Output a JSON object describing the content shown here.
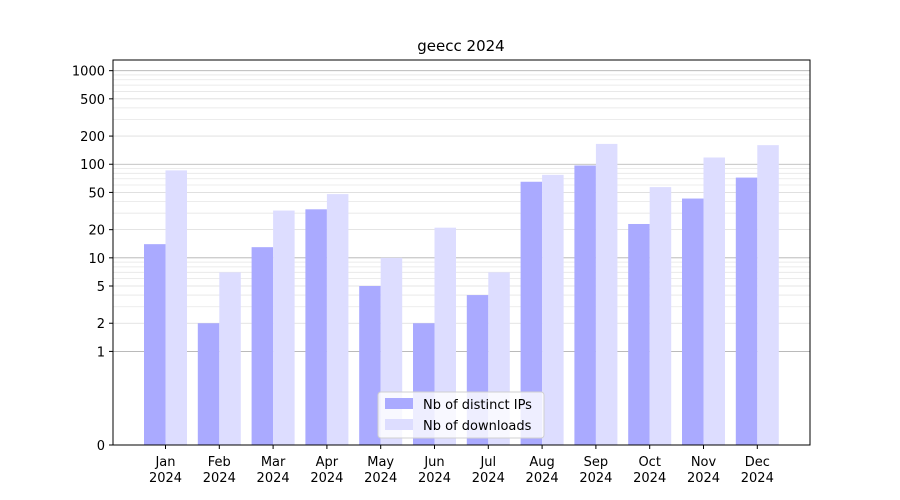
{
  "chart_data": {
    "type": "bar",
    "title": "geecc 2024",
    "xlabel": "",
    "ylabel": "",
    "y_scale": "symlog",
    "ylim": [
      0,
      1300
    ],
    "categories": [
      [
        "Jan",
        "2024"
      ],
      [
        "Feb",
        "2024"
      ],
      [
        "Mar",
        "2024"
      ],
      [
        "Apr",
        "2024"
      ],
      [
        "May",
        "2024"
      ],
      [
        "Jun",
        "2024"
      ],
      [
        "Jul",
        "2024"
      ],
      [
        "Aug",
        "2024"
      ],
      [
        "Sep",
        "2024"
      ],
      [
        "Oct",
        "2024"
      ],
      [
        "Nov",
        "2024"
      ],
      [
        "Dec",
        "2024"
      ]
    ],
    "y_ticks": [
      0,
      1,
      2,
      5,
      10,
      20,
      50,
      100,
      200,
      500,
      1000
    ],
    "y_tick_labels": [
      "0",
      "1",
      "2",
      "5",
      "10",
      "20",
      "50",
      "100",
      "200",
      "500",
      "1000"
    ],
    "series": [
      {
        "name": "Nb of distinct IPs",
        "color": "#aaaaff",
        "values": [
          14,
          2,
          13,
          33,
          5,
          2,
          4,
          65,
          97,
          23,
          43,
          72
        ]
      },
      {
        "name": "Nb of downloads",
        "color": "#ddddff",
        "values": [
          86,
          7,
          32,
          48,
          10,
          21,
          7,
          77,
          165,
          57,
          118,
          160
        ]
      }
    ],
    "grid": "horizontal",
    "legend_position": "lower center"
  }
}
